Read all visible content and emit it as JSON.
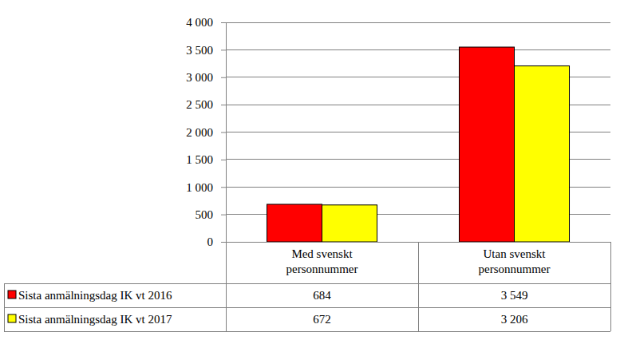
{
  "chart_data": {
    "type": "bar",
    "categories": [
      "Med svenskt personnummer",
      "Utan svenskt personnummer"
    ],
    "series": [
      {
        "name": "Sista anmälningsdag IK vt 2016",
        "color": "#ff0000",
        "values": [
          684,
          3549
        ],
        "value_labels": [
          "684",
          "3 549"
        ]
      },
      {
        "name": "Sista anmälningsdag IK vt 2017",
        "color": "#ffff00",
        "values": [
          672,
          3206
        ],
        "value_labels": [
          "672",
          "3 206"
        ]
      }
    ],
    "ylim": [
      0,
      4000
    ],
    "yticks": [
      0,
      500,
      {
        "value": 1000,
        "label": "1 000"
      },
      {
        "value": 1500,
        "label": "1 500"
      },
      {
        "value": 2000,
        "label": "2 000"
      },
      {
        "value": 2500,
        "label": "2 500"
      },
      {
        "value": 3000,
        "label": "3 000"
      },
      {
        "value": 3500,
        "label": "3 500"
      },
      {
        "value": 4000,
        "label": "4 000"
      }
    ],
    "grid": true,
    "data_labels": true
  }
}
